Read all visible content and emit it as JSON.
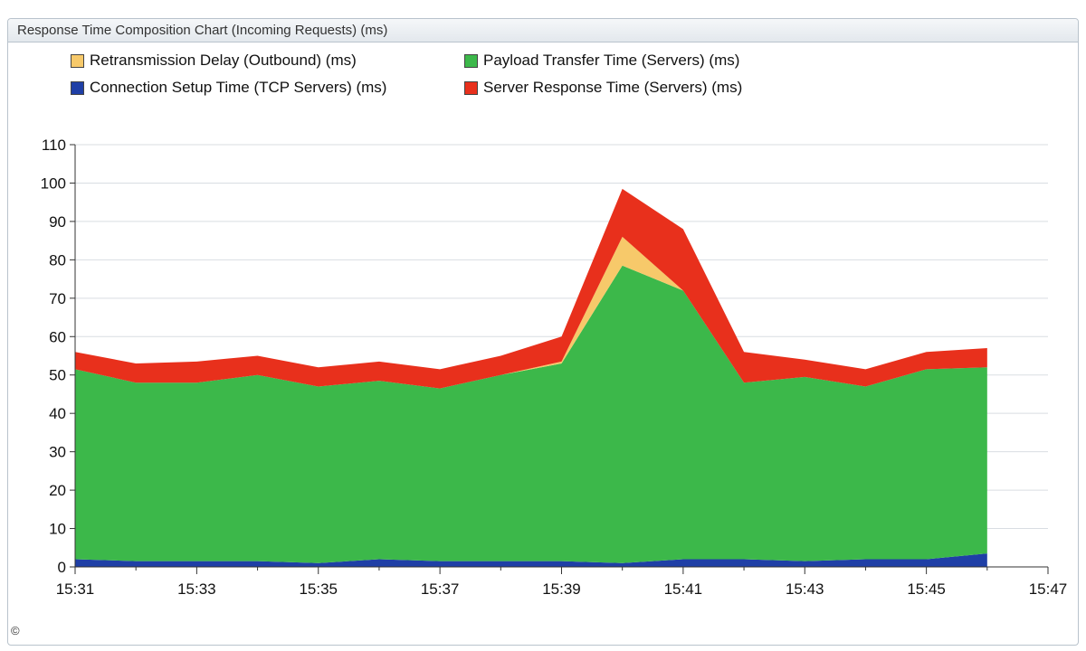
{
  "panel": {
    "title": "Response Time Composition Chart (Incoming Requests) (ms)"
  },
  "footer": {
    "copyright": "©"
  },
  "chart_data": {
    "type": "area",
    "stacked": true,
    "title": "Response Time Composition Chart (Incoming Requests) (ms)",
    "xlabel": "",
    "ylabel": "",
    "x": [
      "15:31",
      "15:32",
      "15:33",
      "15:34",
      "15:35",
      "15:36",
      "15:37",
      "15:38",
      "15:39",
      "15:40",
      "15:41",
      "15:42",
      "15:43",
      "15:44",
      "15:45",
      "15:46"
    ],
    "xlim": [
      "15:31",
      "15:47"
    ],
    "x_ticks": [
      "15:31",
      "15:33",
      "15:35",
      "15:37",
      "15:39",
      "15:41",
      "15:43",
      "15:45",
      "15:47"
    ],
    "ylim": [
      0,
      110
    ],
    "y_ticks": [
      0,
      10,
      20,
      30,
      40,
      50,
      60,
      70,
      80,
      90,
      100,
      110
    ],
    "grid": true,
    "legend_position": "top-left",
    "series": [
      {
        "name": "Connection Setup Time (TCP Servers) (ms)",
        "color": "#1f3fa6",
        "values": [
          2,
          1.5,
          1.5,
          1.5,
          1,
          2,
          1.5,
          1.5,
          1.5,
          1,
          2,
          2,
          1.5,
          2,
          2,
          3.5
        ]
      },
      {
        "name": "Payload Transfer Time (Servers) (ms)",
        "color": "#3cb84a",
        "values": [
          49.5,
          46.5,
          46.5,
          48.5,
          46,
          46.5,
          45,
          48.5,
          51.5,
          77.5,
          70,
          46,
          48,
          45,
          49.5,
          48.5
        ]
      },
      {
        "name": "Retransmission Delay (Outbound) (ms)",
        "color": "#f7c96a",
        "values": [
          0,
          0,
          0,
          0,
          0,
          0,
          0,
          0,
          0.5,
          7.5,
          0,
          0,
          0,
          0,
          0,
          0
        ]
      },
      {
        "name": "Server Response Time (Servers) (ms)",
        "color": "#e8301c",
        "values": [
          4.5,
          5,
          5.5,
          5,
          5,
          5,
          5,
          5,
          6.5,
          12.5,
          16,
          8,
          4.5,
          4.5,
          4.5,
          5
        ]
      }
    ],
    "legend_order": [
      "Retransmission Delay (Outbound) (ms)",
      "Payload Transfer Time (Servers) (ms)",
      "Connection Setup Time (TCP Servers) (ms)",
      "Server Response Time (Servers) (ms)"
    ]
  }
}
